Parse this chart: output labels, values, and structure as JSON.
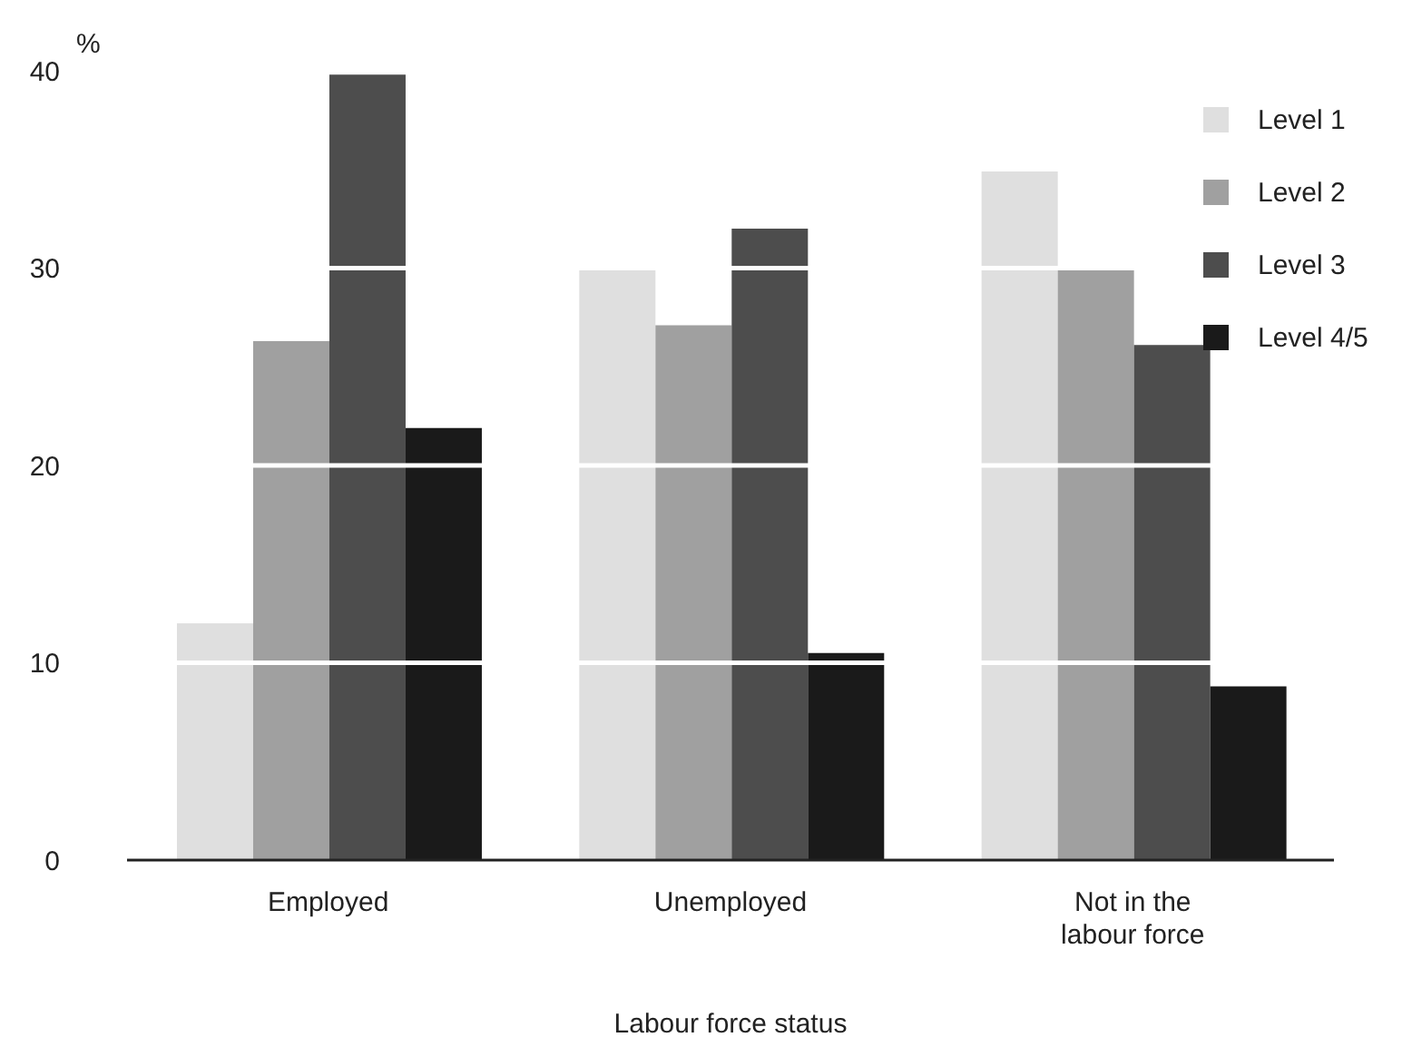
{
  "chart_data": {
    "type": "bar",
    "ylabel": "%",
    "xlabel": "Labour force status",
    "categories": [
      "Employed",
      "Unemployed",
      "Not in the labour force"
    ],
    "series": [
      {
        "name": "Level 1",
        "color": "#dfdfdf",
        "values": [
          12.0,
          29.9,
          34.9
        ]
      },
      {
        "name": "Level 2",
        "color": "#a0a0a0",
        "values": [
          26.3,
          27.1,
          29.9
        ]
      },
      {
        "name": "Level 3",
        "color": "#4d4d4d",
        "values": [
          39.8,
          32.0,
          26.1
        ]
      },
      {
        "name": "Level 4/5",
        "color": "#1a1a1a",
        "values": [
          21.9,
          10.5,
          8.8
        ]
      }
    ],
    "ylim": [
      0,
      40
    ],
    "yticks": [
      0,
      10,
      20,
      30,
      40
    ],
    "grid": "y",
    "legend": "top right"
  }
}
